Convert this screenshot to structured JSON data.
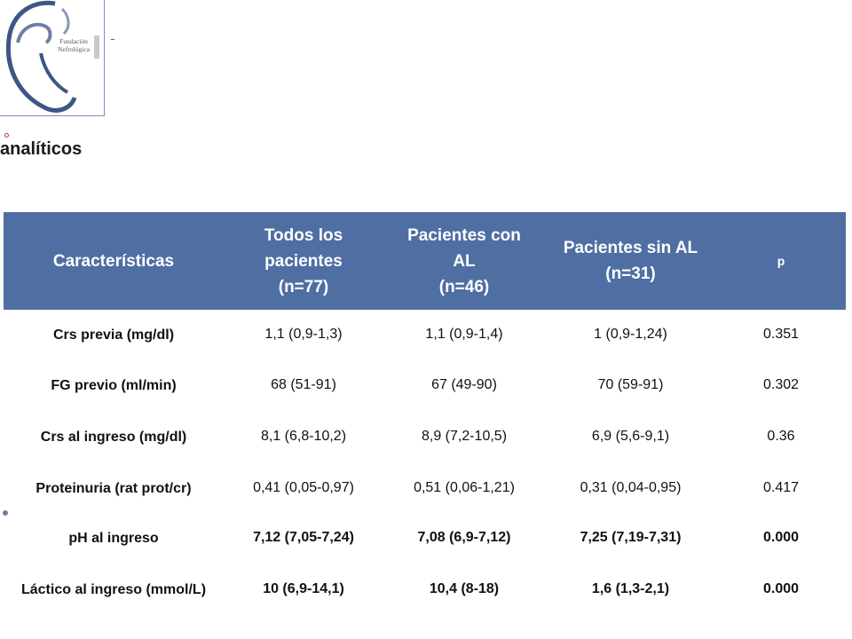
{
  "logo": {
    "text_line1": "Fundación",
    "text_line2": "Nefrológica",
    "ribbon_text": "H.S.N.S."
  },
  "section_title": "analíticos",
  "table": {
    "headers": [
      {
        "lines": [
          "Características"
        ]
      },
      {
        "lines": [
          "Todos los",
          "pacientes",
          "(n=77)"
        ]
      },
      {
        "lines": [
          "Pacientes con",
          "AL",
          "(n=46)"
        ]
      },
      {
        "lines": [
          "Pacientes sin AL",
          "(n=31)"
        ]
      },
      {
        "lines": [
          "p"
        ]
      }
    ],
    "rows": [
      {
        "label": "Crs previa (mg/dl)",
        "all": "1,1 (0,9-1,3)",
        "with_al": "1,1 (0,9-1,4)",
        "without_al": "1 (0,9-1,24)",
        "p": "0.351"
      },
      {
        "label": "FG previo (ml/min)",
        "all": "68 (51-91)",
        "with_al": "67 (49-90)",
        "without_al": "70 (59-91)",
        "p": "0.302"
      },
      {
        "label": "Crs al ingreso (mg/dl)",
        "all": "8,1 (6,8-10,2)",
        "with_al": "8,9 (7,2-10,5)",
        "without_al": "6,9 (5,6-9,1)",
        "p": "0.36"
      },
      {
        "label": "Proteinuria (rat prot/cr)",
        "all": "0,41 (0,05-0,97)",
        "with_al": "0,51 (0,06-1,21)",
        "without_al": "0,31 (0,04-0,95)",
        "p": "0.417"
      },
      {
        "label": "pH al ingreso",
        "all": "7,12 (7,05-7,24)",
        "with_al": "7,08 (6,9-7,12)",
        "without_al": "7,25 (7,19-7,31)",
        "p": "0.000"
      },
      {
        "label": "Láctico al ingreso (mmol/L)",
        "all": "10 (6,9-14,1)",
        "with_al": "10,4 (8-18)",
        "without_al": "1,6 (1,3-2,1)",
        "p": "0.000"
      }
    ]
  },
  "colors": {
    "header_bg": "#4f6fa3",
    "header_text": "#ffffff",
    "logo_stroke": "#3f5585"
  }
}
